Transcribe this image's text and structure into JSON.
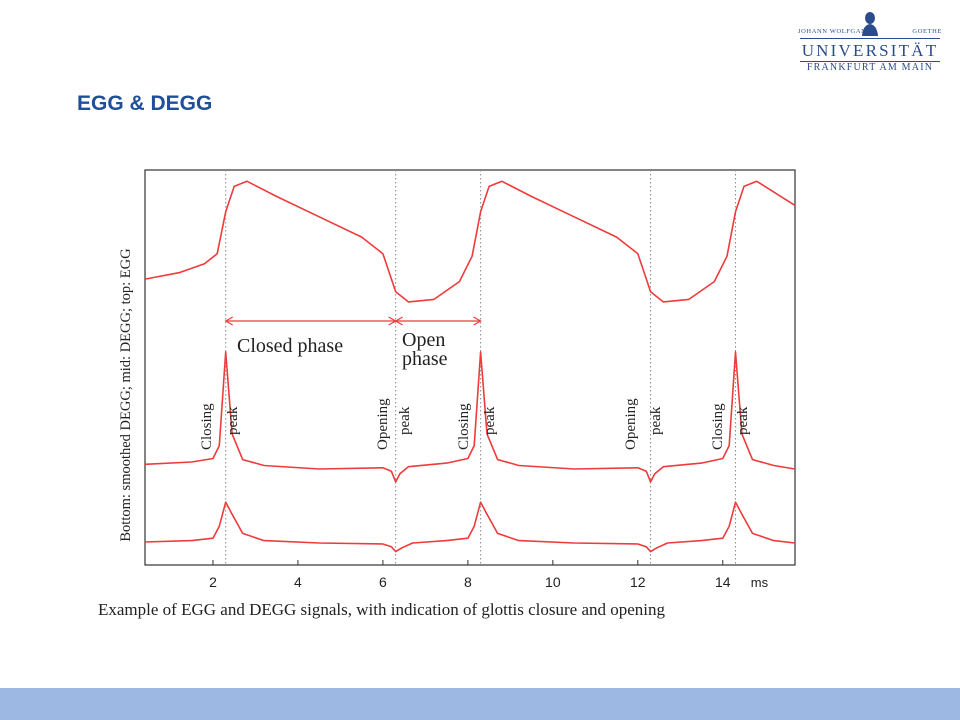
{
  "header": {
    "logo": {
      "line_left": "Johann Wolfgang",
      "line_right": "Goethe",
      "main": "UNIVERSITÄT",
      "sub": "FRANKFURT AM MAIN"
    },
    "title": "EGG & DEGG"
  },
  "caption": "Example of EGG and DEGG signals, with indication of glottis closure and opening",
  "colors": {
    "signal": "#ee3b3b",
    "title": "#1f4e9a",
    "footer": "#9db9e3"
  },
  "chart_data": {
    "type": "line",
    "title": "",
    "xlabel": "",
    "ylabel": "Bottom: smoothed DEGG; mid: DEGG; top: EGG",
    "x_unit": "ms",
    "xlim": [
      0.4,
      15.7
    ],
    "x_ticks": [
      2,
      4,
      6,
      8,
      10,
      12,
      14
    ],
    "grid": false,
    "vlines": [
      2.3,
      6.3,
      8.3,
      12.3,
      14.3
    ],
    "series": [
      {
        "name": "EGG",
        "x": [
          0.4,
          1.2,
          1.8,
          2.1,
          2.3,
          2.5,
          2.8,
          3.5,
          4.5,
          5.5,
          6.0,
          6.3,
          6.6,
          7.2,
          7.8,
          8.1,
          8.3,
          8.5,
          8.8,
          9.5,
          10.5,
          11.5,
          12.0,
          12.3,
          12.6,
          13.2,
          13.8,
          14.1,
          14.3,
          14.5,
          14.8,
          15.7
        ],
        "y": [
          0.22,
          0.27,
          0.34,
          0.42,
          0.75,
          0.95,
          0.99,
          0.87,
          0.71,
          0.55,
          0.42,
          0.12,
          0.04,
          0.06,
          0.2,
          0.4,
          0.75,
          0.95,
          0.99,
          0.87,
          0.71,
          0.55,
          0.42,
          0.12,
          0.04,
          0.06,
          0.2,
          0.4,
          0.75,
          0.95,
          0.99,
          0.8
        ]
      },
      {
        "name": "DEGG",
        "x": [
          0.4,
          1.5,
          2.0,
          2.15,
          2.3,
          2.45,
          2.7,
          3.2,
          4.5,
          6.0,
          6.2,
          6.3,
          6.4,
          6.6,
          7.5,
          8.0,
          8.15,
          8.3,
          8.45,
          8.7,
          9.2,
          10.5,
          12.0,
          12.2,
          12.3,
          12.4,
          12.6,
          13.5,
          14.0,
          14.15,
          14.3,
          14.45,
          14.7,
          15.2,
          15.7
        ],
        "y": [
          0.04,
          0.06,
          0.09,
          0.2,
          1.0,
          0.3,
          0.08,
          0.03,
          0.0,
          0.01,
          -0.02,
          -0.11,
          -0.04,
          0.02,
          0.05,
          0.09,
          0.2,
          1.0,
          0.3,
          0.08,
          0.03,
          0.0,
          0.01,
          -0.02,
          -0.11,
          -0.04,
          0.02,
          0.05,
          0.09,
          0.2,
          1.0,
          0.3,
          0.08,
          0.03,
          0.0
        ]
      },
      {
        "name": "smoothed DEGG",
        "x": [
          0.4,
          1.5,
          2.0,
          2.15,
          2.3,
          2.45,
          2.7,
          3.2,
          4.5,
          6.0,
          6.2,
          6.3,
          6.45,
          6.7,
          7.5,
          8.0,
          8.15,
          8.3,
          8.45,
          8.7,
          9.2,
          10.5,
          12.0,
          12.2,
          12.3,
          12.45,
          12.7,
          13.5,
          14.0,
          14.15,
          14.3,
          14.45,
          14.7,
          15.2,
          15.7
        ],
        "y": [
          0.02,
          0.05,
          0.1,
          0.35,
          0.85,
          0.6,
          0.2,
          0.05,
          0.0,
          -0.02,
          -0.08,
          -0.18,
          -0.1,
          0.0,
          0.05,
          0.1,
          0.35,
          0.85,
          0.6,
          0.2,
          0.05,
          0.0,
          -0.02,
          -0.08,
          -0.18,
          -0.1,
          0.0,
          0.05,
          0.1,
          0.35,
          0.85,
          0.6,
          0.2,
          0.05,
          0.0
        ]
      }
    ],
    "annotations": {
      "closed_phase": "Closed phase",
      "open_phase_1": "Open",
      "open_phase_2": "phase",
      "closing": "Closing",
      "opening": "Opening",
      "peak": "peak"
    }
  }
}
